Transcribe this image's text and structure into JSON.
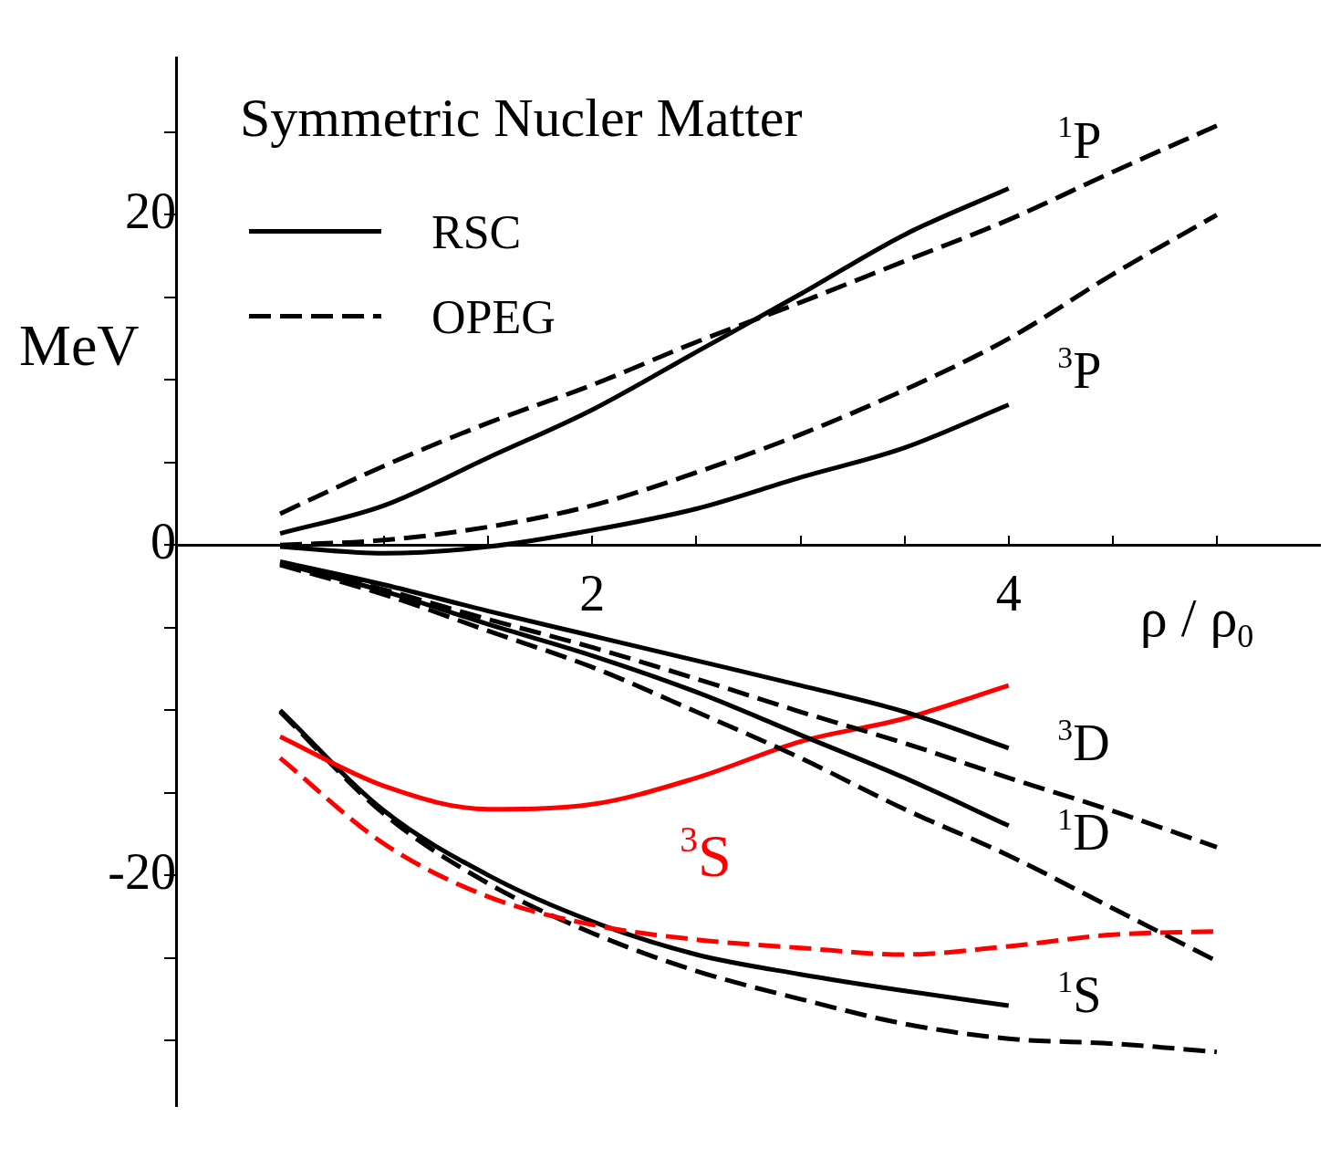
{
  "chart_data": {
    "type": "line",
    "title": "Symmetric Nucler Matter",
    "xlabel": "ρ / ρ$_{0}$",
    "ylabel": "MeV",
    "xlim": [
      0,
      5.5
    ],
    "ylim": [
      -34,
      29.5
    ],
    "xticks": [
      {
        "value": 1,
        "label": null
      },
      {
        "value": 1.5,
        "label": null
      },
      2,
      {
        "value": 2.5,
        "label": null
      },
      {
        "value": 3,
        "label": null
      },
      {
        "value": 3.5,
        "label": null
      },
      4,
      {
        "value": 4.5,
        "label": null
      },
      {
        "value": 5,
        "label": null
      }
    ],
    "yticks": [
      {
        "value": -30,
        "label": null
      },
      {
        "value": -25,
        "label": null
      },
      -20,
      {
        "value": -15,
        "label": null
      },
      {
        "value": -10,
        "label": null
      },
      {
        "value": -5,
        "label": null
      },
      0,
      {
        "value": 5,
        "label": null
      },
      {
        "value": 10,
        "label": null
      },
      {
        "value": 15,
        "label": null
      },
      20,
      {
        "value": 25,
        "label": null
      }
    ],
    "grid": false,
    "legend": "top left",
    "marker": "none",
    "series": [
      {
        "name": "RSC",
        "color": "#000000",
        "line_style": "solid",
        "x": [
          0.5,
          1,
          1.5,
          2,
          2.5,
          3,
          3.5,
          4
        ],
        "values": [
          0.7,
          2.4,
          5.3,
          8.2,
          11.7,
          15.2,
          18.8,
          21.6
        ]
      },
      {
        "name": "OPEG",
        "color": "#000000",
        "line_style": "dashed",
        "x": [
          0.5,
          1,
          1.5,
          2,
          2.5,
          3,
          3.5,
          4,
          4.5,
          5
        ],
        "values": [
          1.9,
          4.8,
          7.4,
          9.7,
          12.3,
          14.7,
          17.2,
          19.7,
          22.6,
          25.4
        ]
      },
      {
        "color": "#000000",
        "line_style": "solid",
        "x": [
          0.5,
          1,
          1.5,
          2,
          2.5,
          3,
          3.5,
          4
        ],
        "values": [
          -0.1,
          -0.5,
          -0.1,
          0.9,
          2.2,
          4.1,
          5.9,
          8.5
        ]
      },
      {
        "color": "#000000",
        "line_style": "dashed",
        "x": [
          0.5,
          1,
          1.5,
          2,
          2.5,
          3,
          3.5,
          4,
          4.5,
          5
        ],
        "values": [
          0,
          0.3,
          1.1,
          2.4,
          4.4,
          6.7,
          9.4,
          12.5,
          16.4,
          20
        ]
      },
      {
        "color": "#000000",
        "line_style": "solid",
        "x": [
          0.5,
          1,
          1.5,
          2,
          2.5,
          3,
          3.5,
          4
        ],
        "values": [
          -1,
          -2.4,
          -4,
          -5.5,
          -7,
          -8.5,
          -10.1,
          -12.3
        ]
      },
      {
        "color": "#000000",
        "line_style": "dashed",
        "x": [
          0.5,
          1,
          1.5,
          2,
          2.5,
          3,
          3.5,
          4,
          4.5,
          5
        ],
        "values": [
          -1.1,
          -2.7,
          -4.5,
          -6.2,
          -8.1,
          -10.1,
          -12,
          -14.1,
          -16.1,
          -18.3
        ]
      },
      {
        "color": "#000000",
        "line_style": "solid",
        "x": [
          0.5,
          1,
          1.5,
          2,
          2.5,
          3,
          3.5,
          4
        ],
        "values": [
          -1.1,
          -2.8,
          -4.8,
          -6.7,
          -8.9,
          -11.5,
          -14.1,
          -17
        ]
      },
      {
        "color": "#000000",
        "line_style": "dashed",
        "x": [
          0.5,
          1,
          1.5,
          2,
          2.5,
          3,
          3.5,
          4,
          4.5,
          5
        ],
        "values": [
          -1.2,
          -3,
          -5.2,
          -7.4,
          -10.1,
          -12.9,
          -16,
          -18.8,
          -22,
          -25.2
        ]
      },
      {
        "color": "#ff0000",
        "line_style": "solid",
        "x": [
          0.5,
          1,
          1.5,
          2,
          2.5,
          3,
          3.5,
          4
        ],
        "values": [
          -11.6,
          -14.6,
          -16,
          -15.7,
          -14.1,
          -11.9,
          -10.5,
          -8.5
        ]
      },
      {
        "color": "#ff0000",
        "line_style": "dashed",
        "x": [
          0.5,
          1,
          1.5,
          2,
          2.5,
          3,
          3.5,
          4,
          4.5,
          5
        ],
        "values": [
          -12.9,
          -18.1,
          -21.3,
          -23,
          -23.9,
          -24.4,
          -24.8,
          -24.3,
          -23.6,
          -23.4
        ]
      },
      {
        "color": "#000000",
        "line_style": "solid",
        "x": [
          0.5,
          1,
          1.5,
          2,
          2.5,
          3,
          3.5,
          4
        ],
        "values": [
          -10,
          -16.1,
          -20,
          -22.8,
          -24.8,
          -26,
          -27,
          -27.9
        ]
      },
      {
        "color": "#000000",
        "line_style": "dashed",
        "x": [
          0.5,
          1,
          1.5,
          2,
          2.5,
          3,
          3.5,
          4,
          4.5,
          5
        ],
        "values": [
          -10.1,
          -16.3,
          -20.5,
          -23.5,
          -25.8,
          -27.5,
          -29,
          -29.9,
          -30.2,
          -30.7
        ]
      }
    ],
    "annotations": [
      "$^{1}$P",
      "$^{3}$P",
      "$^{3}$D",
      "$^{1}$D",
      "$^{3}$S",
      "$^{1}$S"
    ]
  }
}
